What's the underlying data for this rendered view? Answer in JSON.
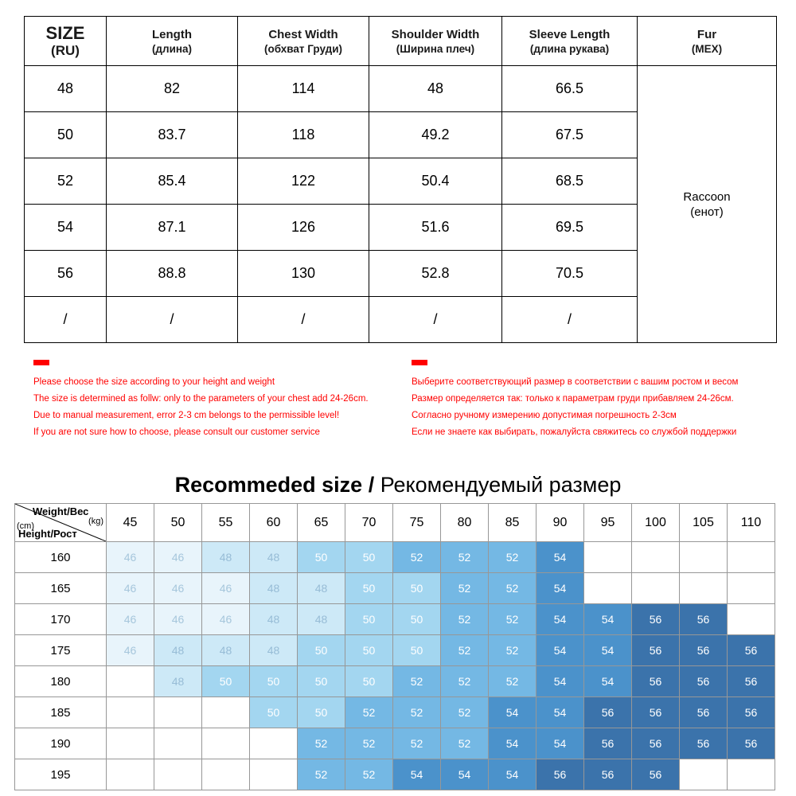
{
  "chart_data": [
    {
      "type": "table",
      "name": "garment-measurements",
      "columns": [
        {
          "en": "SIZE",
          "ru": "(RU)"
        },
        {
          "en": "Length",
          "ru": "(длина)"
        },
        {
          "en": "Chest Width",
          "ru": "(обхват Груди)"
        },
        {
          "en": "Shoulder Width",
          "ru": "(Ширина плеч)"
        },
        {
          "en": "Sleeve Length",
          "ru": "(длина рукава)"
        },
        {
          "en": "Fur",
          "ru": "(МЕХ)"
        }
      ],
      "rows": [
        [
          "48",
          "82",
          "114",
          "48",
          "66.5"
        ],
        [
          "50",
          "83.7",
          "118",
          "49.2",
          "67.5"
        ],
        [
          "52",
          "85.4",
          "122",
          "50.4",
          "68.5"
        ],
        [
          "54",
          "87.1",
          "126",
          "51.6",
          "69.5"
        ],
        [
          "56",
          "88.8",
          "130",
          "52.8",
          "70.5"
        ],
        [
          "/",
          "/",
          "/",
          "/",
          "/"
        ]
      ],
      "fur": {
        "en": "Raccoon",
        "ru": "(енот)"
      }
    },
    {
      "type": "heatmap",
      "name": "recommended-size-matrix",
      "corner": {
        "weight": "Weight/Вес",
        "weight_unit": "(kg)",
        "height_unit": "(cm)",
        "height": "Height/Рост"
      },
      "x": [
        "45",
        "50",
        "55",
        "60",
        "65",
        "70",
        "75",
        "80",
        "85",
        "90",
        "95",
        "100",
        "105",
        "110"
      ],
      "y": [
        "160",
        "165",
        "170",
        "175",
        "180",
        "185",
        "190",
        "195"
      ],
      "values": [
        [
          46,
          46,
          48,
          48,
          50,
          50,
          52,
          52,
          52,
          54,
          null,
          null,
          null,
          null
        ],
        [
          46,
          46,
          46,
          48,
          48,
          50,
          50,
          52,
          52,
          54,
          null,
          null,
          null,
          null
        ],
        [
          46,
          46,
          46,
          48,
          48,
          50,
          50,
          52,
          52,
          54,
          54,
          56,
          56,
          null
        ],
        [
          46,
          48,
          48,
          48,
          50,
          50,
          50,
          52,
          52,
          54,
          54,
          56,
          56,
          56
        ],
        [
          null,
          48,
          50,
          50,
          50,
          50,
          52,
          52,
          52,
          54,
          54,
          56,
          56,
          56
        ],
        [
          null,
          null,
          null,
          50,
          50,
          52,
          52,
          52,
          54,
          54,
          56,
          56,
          56,
          56
        ],
        [
          null,
          null,
          null,
          null,
          52,
          52,
          52,
          52,
          54,
          54,
          56,
          56,
          56,
          56
        ],
        [
          null,
          null,
          null,
          null,
          52,
          52,
          54,
          54,
          54,
          56,
          56,
          56,
          null,
          null
        ]
      ]
    }
  ],
  "notes": {
    "en": [
      "Please choose the size according to your height and weight",
      "The size is determined as follw: only to the parameters of your chest add 24-26cm.",
      "Due to manual measurement, error 2-3 cm belongs to the permissible level!",
      "If you are not sure how to choose,   please consult our customer service"
    ],
    "ru": [
      "Выберите соответствующий размер в соответствии с вашим ростом и весом",
      "Размер определяется так: только к параметрам груди прибавляем 24-26см.",
      "Согласно ручному измерению допустимая погрешность 2-3см",
      "Если не знаете как выбирать, пожалуйста свяжитесь со службой поддержки"
    ]
  },
  "heading": {
    "bold": "Recommeded size /",
    "regular": " Рекомендуемый размер"
  },
  "colors": {
    "note_red": "#FF0000",
    "cell_46": {
      "bg": "#E8F4FB",
      "text": "#A6C6DC"
    },
    "cell_48": {
      "bg": "#CDE9F7",
      "text": "#97BCD6"
    },
    "cell_50": {
      "bg": "#A3D6F0",
      "text": "#FFFFFF"
    },
    "cell_52": {
      "bg": "#74B8E4",
      "text": "#FFFFFF"
    },
    "cell_54": {
      "bg": "#4B92CB",
      "text": "#FFFFFF"
    },
    "cell_56": {
      "bg": "#3B73AB",
      "text": "#FFFFFF"
    }
  }
}
